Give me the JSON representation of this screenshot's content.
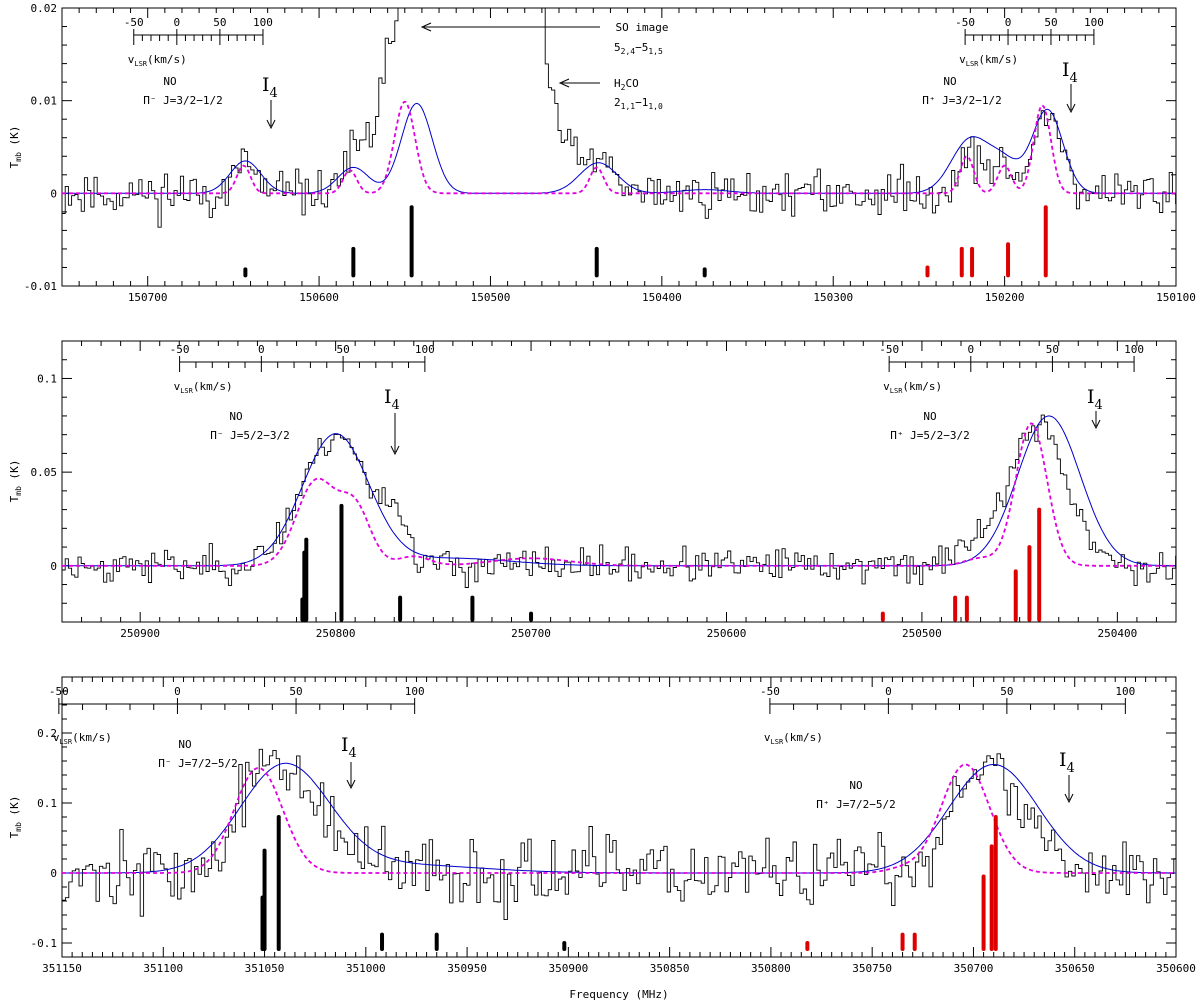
{
  "figure": {
    "xlabel": "Frequency (MHz)",
    "ylabel": "T_mb (K)",
    "ylabel_main": "T",
    "ylabel_sub": "mb",
    "ylabel_unit": " (K)",
    "vlsr_label_main": "v",
    "vlsr_label_sub": "LSR",
    "vlsr_label_unit": "(km/s)",
    "i4_main": "I",
    "i4_sub": "4",
    "colors": {
      "observed": "#000000",
      "model_blue": "#0000cc",
      "model_magenta": "#e000e0",
      "lines_black": "#000000",
      "lines_red": "#dd0000"
    }
  },
  "chart_data": [
    {
      "type": "line",
      "panel": "top",
      "xlim": [
        150750,
        150100
      ],
      "ylim": [
        -0.01,
        0.02
      ],
      "xticks": [
        150700,
        150600,
        150500,
        150400,
        150300,
        150200,
        150100
      ],
      "xtick_labels": [
        "150700",
        "150600",
        "150500",
        "150400",
        "150300",
        "150200",
        "150100"
      ],
      "yticks": [
        -0.01,
        0,
        0.01,
        0.02
      ],
      "ytick_labels": [
        "-0.01",
        "0",
        "0.01",
        "0.02"
      ],
      "series": [
        {
          "name": "observed",
          "style": "step",
          "seed": 11,
          "noise": 0.0022,
          "overflow_regions": [
            [
              150552,
              150537
            ],
            [
              150533,
              150468
            ]
          ],
          "components": [
            {
              "c": 150643,
              "a": 0.0032,
              "w": 6
            },
            {
              "c": 150580,
              "a": 0.0032,
              "w": 7
            },
            {
              "c": 150545,
              "a": 0.024,
              "w": 14
            },
            {
              "c": 150500,
              "a": 0.04,
              "w": 22
            },
            {
              "c": 150437,
              "a": 0.003,
              "w": 8
            },
            {
              "c": 150218,
              "a": 0.004,
              "w": 9
            },
            {
              "c": 150200,
              "a": 0.002,
              "w": 5
            },
            {
              "c": 150175,
              "a": 0.009,
              "w": 8
            }
          ]
        },
        {
          "name": "model_blue",
          "style": "smooth",
          "components": [
            {
              "c": 150643,
              "a": 0.0035,
              "w": 9
            },
            {
              "c": 150580,
              "a": 0.0028,
              "w": 9
            },
            {
              "c": 150543,
              "a": 0.0097,
              "w": 9
            },
            {
              "c": 150437,
              "a": 0.0033,
              "w": 11
            },
            {
              "c": 150375,
              "a": 0.0004,
              "w": 14
            },
            {
              "c": 150220,
              "a": 0.0058,
              "w": 11
            },
            {
              "c": 150200,
              "a": 0.003,
              "w": 9
            },
            {
              "c": 150175,
              "a": 0.009,
              "w": 9
            }
          ]
        },
        {
          "name": "model_magenta",
          "style": "dashed",
          "components": [
            {
              "c": 150644,
              "a": 0.003,
              "w": 4
            },
            {
              "c": 150582,
              "a": 0.0025,
              "w": 4
            },
            {
              "c": 150550,
              "a": 0.0099,
              "w": 6
            },
            {
              "c": 150438,
              "a": 0.0028,
              "w": 4
            },
            {
              "c": 150222,
              "a": 0.004,
              "w": 4
            },
            {
              "c": 150200,
              "a": 0.003,
              "w": 4
            },
            {
              "c": 150178,
              "a": 0.0095,
              "w": 5
            }
          ]
        }
      ],
      "transition_lines": [
        {
          "freq": 150643,
          "top": -0.0082,
          "color": "black"
        },
        {
          "freq": 150580,
          "top": -0.006,
          "color": "black"
        },
        {
          "freq": 150546,
          "top": -0.0015,
          "color": "black"
        },
        {
          "freq": 150438,
          "top": -0.006,
          "color": "black"
        },
        {
          "freq": 150375,
          "top": -0.0082,
          "color": "black"
        },
        {
          "freq": 150245,
          "top": -0.008,
          "color": "red"
        },
        {
          "freq": 150225,
          "top": -0.006,
          "color": "red"
        },
        {
          "freq": 150219,
          "top": -0.006,
          "color": "red"
        },
        {
          "freq": 150198,
          "top": -0.0055,
          "color": "red"
        },
        {
          "freq": 150176,
          "top": -0.0015,
          "color": "red"
        }
      ],
      "vlsr_scales": [
        {
          "zero_freq": 150683,
          "vmin": -50,
          "vmax": 100,
          "labels": [
            "-50",
            "0",
            "50",
            "100"
          ]
        },
        {
          "zero_freq": 150198,
          "vmin": -50,
          "vmax": 100,
          "labels": [
            "-50",
            "0",
            "50",
            "100"
          ]
        }
      ],
      "annotations": {
        "left_species": "NO",
        "left_transition": "Π⁻ J=3/2−1/2",
        "right_species": "NO",
        "right_transition": "Π⁺ J=3/2−1/2",
        "so_line1": "SO image",
        "so_line2": "5",
        "so_line2_sub": "2,4",
        "so_line2_mid": "−5",
        "so_line2_sub2": "1,5",
        "h2co_line1_main": "H",
        "h2co_line1_sub": "2",
        "h2co_line1_end": "CO",
        "h2co_line2": "2",
        "h2co_line2_sub": "1,1",
        "h2co_line2_mid": "−1",
        "h2co_line2_sub2": "1,0"
      }
    },
    {
      "type": "line",
      "panel": "middle",
      "xlim": [
        250940,
        250370
      ],
      "ylim": [
        -0.03,
        0.12
      ],
      "xticks": [
        250900,
        250800,
        250700,
        250600,
        250500,
        250400
      ],
      "xtick_labels": [
        "250900",
        "250800",
        "250700",
        "250600",
        "250500",
        "250400"
      ],
      "yticks": [
        0,
        0.05,
        0.1
      ],
      "ytick_labels": [
        "0",
        "0.05",
        "0.1"
      ],
      "series": [
        {
          "name": "observed",
          "style": "step",
          "seed": 23,
          "noise": 0.008,
          "overflow_regions": [],
          "components": [
            {
              "c": 250800,
              "a": 0.07,
              "w": 17
            },
            {
              "c": 250770,
              "a": 0.02,
              "w": 6
            },
            {
              "c": 250440,
              "a": 0.076,
              "w": 14
            },
            {
              "c": 250470,
              "a": 0.012,
              "w": 10
            }
          ]
        },
        {
          "name": "model_blue",
          "style": "smooth",
          "components": [
            {
              "c": 250800,
              "a": 0.07,
              "w": 17
            },
            {
              "c": 250740,
              "a": 0.004,
              "w": 30
            },
            {
              "c": 250435,
              "a": 0.08,
              "w": 16
            }
          ]
        },
        {
          "name": "model_magenta",
          "style": "dashed",
          "components": [
            {
              "c": 250810,
              "a": 0.045,
              "w": 10
            },
            {
              "c": 250790,
              "a": 0.03,
              "w": 8
            },
            {
              "c": 250760,
              "a": 0.005,
              "w": 8
            },
            {
              "c": 250700,
              "a": 0.004,
              "w": 20
            },
            {
              "c": 250444,
              "a": 0.076,
              "w": 8
            },
            {
              "c": 250470,
              "a": 0.004,
              "w": 8
            }
          ]
        }
      ],
      "transition_lines": [
        {
          "freq": 250817,
          "top": -0.018,
          "color": "black"
        },
        {
          "freq": 250816,
          "top": 0.007,
          "color": "black"
        },
        {
          "freq": 250815,
          "top": 0.014,
          "color": "black"
        },
        {
          "freq": 250797,
          "top": 0.032,
          "color": "black"
        },
        {
          "freq": 250767,
          "top": -0.017,
          "color": "black"
        },
        {
          "freq": 250730,
          "top": -0.017,
          "color": "black"
        },
        {
          "freq": 250700,
          "top": -0.0255,
          "color": "black"
        },
        {
          "freq": 250520,
          "top": -0.0255,
          "color": "red"
        },
        {
          "freq": 250483,
          "top": -0.017,
          "color": "red"
        },
        {
          "freq": 250477,
          "top": -0.017,
          "color": "red"
        },
        {
          "freq": 250452,
          "top": -0.003,
          "color": "red"
        },
        {
          "freq": 250445,
          "top": 0.01,
          "color": "red"
        },
        {
          "freq": 250440,
          "top": 0.03,
          "color": "red"
        }
      ],
      "vlsr_scales": [
        {
          "zero_freq": 250838,
          "vmin": -50,
          "vmax": 100,
          "labels": [
            "-50",
            "0",
            "50",
            "100"
          ]
        },
        {
          "zero_freq": 250475,
          "vmin": -50,
          "vmax": 100,
          "labels": [
            "-50",
            "0",
            "50",
            "100"
          ]
        }
      ],
      "annotations": {
        "left_species": "NO",
        "left_transition": "Π⁻ J=5/2−3/2",
        "right_species": "NO",
        "right_transition": "Π⁺ J=5/2−3/2"
      }
    },
    {
      "type": "line",
      "panel": "bottom",
      "xlim": [
        351150,
        350600
      ],
      "ylim": [
        -0.12,
        0.28
      ],
      "xticks": [
        351150,
        351100,
        351050,
        351000,
        350950,
        350900,
        350850,
        350800,
        350750,
        350700,
        350650,
        350600
      ],
      "xtick_labels": [
        "351150",
        "351100",
        "351050",
        "351000",
        "350950",
        "350900",
        "350850",
        "350800",
        "350750",
        "350700",
        "350650",
        "350600"
      ],
      "yticks": [
        -0.1,
        0,
        0.1,
        0.2
      ],
      "ytick_labels": [
        "-0.1",
        "0",
        "0.1",
        "0.2"
      ],
      "series": [
        {
          "name": "observed",
          "style": "step",
          "seed": 37,
          "noise": 0.045,
          "overflow_regions": [],
          "components": [
            {
              "c": 351050,
              "a": 0.15,
              "w": 12
            },
            {
              "c": 351025,
              "a": 0.08,
              "w": 14
            },
            {
              "c": 350700,
              "a": 0.15,
              "w": 12
            },
            {
              "c": 350675,
              "a": 0.07,
              "w": 14
            }
          ]
        },
        {
          "name": "model_blue",
          "style": "smooth",
          "components": [
            {
              "c": 351040,
              "a": 0.152,
              "w": 22
            },
            {
              "c": 350985,
              "a": 0.012,
              "w": 40
            },
            {
              "c": 350690,
              "a": 0.155,
              "w": 22
            }
          ]
        },
        {
          "name": "model_magenta",
          "style": "dashed",
          "components": [
            {
              "c": 351053,
              "a": 0.15,
              "w": 12
            },
            {
              "c": 350704,
              "a": 0.155,
              "w": 12
            },
            {
              "c": 350735,
              "a": 0.006,
              "w": 8
            }
          ]
        }
      ],
      "transition_lines": [
        {
          "freq": 351051,
          "top": -0.035,
          "color": "black"
        },
        {
          "freq": 351050,
          "top": 0.032,
          "color": "black"
        },
        {
          "freq": 351043,
          "top": 0.08,
          "color": "black"
        },
        {
          "freq": 350992,
          "top": -0.088,
          "color": "black"
        },
        {
          "freq": 350965,
          "top": -0.088,
          "color": "black"
        },
        {
          "freq": 350902,
          "top": -0.1,
          "color": "black"
        },
        {
          "freq": 350782,
          "top": -0.1,
          "color": "red"
        },
        {
          "freq": 350735,
          "top": -0.088,
          "color": "red"
        },
        {
          "freq": 350729,
          "top": -0.088,
          "color": "red"
        },
        {
          "freq": 350695,
          "top": -0.005,
          "color": "red"
        },
        {
          "freq": 350691,
          "top": 0.038,
          "color": "red"
        },
        {
          "freq": 350689,
          "top": 0.08,
          "color": "red"
        }
      ],
      "vlsr_scales": [
        {
          "zero_freq": 351093,
          "vmin": -50,
          "vmax": 100,
          "labels": [
            "-50",
            "0",
            "50",
            "100"
          ]
        },
        {
          "zero_freq": 350742,
          "vmin": -50,
          "vmax": 100,
          "labels": [
            "-50",
            "0",
            "50",
            "100"
          ]
        }
      ],
      "annotations": {
        "left_species": "NO",
        "left_transition": "Π⁻ J=7/2−5/2",
        "right_species": "NO",
        "right_transition": "Π⁺ J=7/2−5/2"
      }
    }
  ]
}
